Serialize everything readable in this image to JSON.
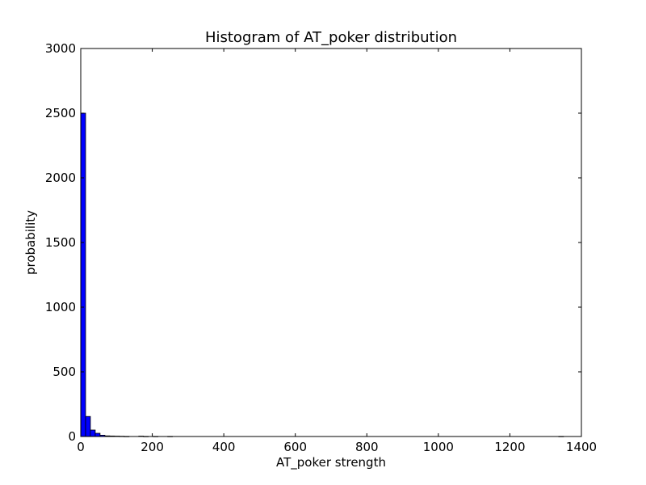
{
  "chart_data": {
    "type": "bar",
    "title": "Histogram of AT_poker  distribution",
    "xlabel": "AT_poker  strength",
    "ylabel": "probability",
    "xlim": [
      0,
      1400
    ],
    "ylim": [
      0,
      3000
    ],
    "grid": false,
    "legend": "none",
    "bar_color": "#0000ff",
    "xticks": [
      0,
      200,
      400,
      600,
      800,
      1000,
      1200,
      1400
    ],
    "yticks": [
      0,
      500,
      1000,
      1500,
      2000,
      2500,
      3000
    ],
    "xtick_labels": [
      "0",
      "200",
      "400",
      "600",
      "800",
      "1000",
      "1200",
      "1400"
    ],
    "ytick_labels": [
      "0",
      "500",
      "1000",
      "1500",
      "2000",
      "2500",
      "3000"
    ],
    "bin_width": 13.5,
    "bins_start": 0,
    "values": [
      2500,
      155,
      50,
      25,
      10,
      5,
      4,
      3,
      2,
      1,
      0,
      0,
      3,
      1,
      0,
      1,
      0,
      0,
      1,
      0,
      0,
      0,
      0,
      0,
      0,
      0,
      0,
      0,
      0,
      0,
      0,
      0,
      0,
      0,
      0,
      0,
      0,
      0,
      0,
      0,
      0,
      0,
      0,
      0,
      0,
      0,
      0,
      0,
      0,
      0,
      0,
      0,
      0,
      0,
      0,
      0,
      0,
      0,
      0,
      0,
      0,
      0,
      0,
      0,
      0,
      0,
      0,
      0,
      0,
      0,
      0,
      0,
      0,
      0,
      0,
      0,
      0,
      0,
      0,
      0,
      0,
      0,
      0,
      0,
      0,
      0,
      0,
      0,
      0,
      0,
      0,
      0,
      0,
      0,
      0,
      0,
      0,
      0,
      0,
      1
    ]
  }
}
